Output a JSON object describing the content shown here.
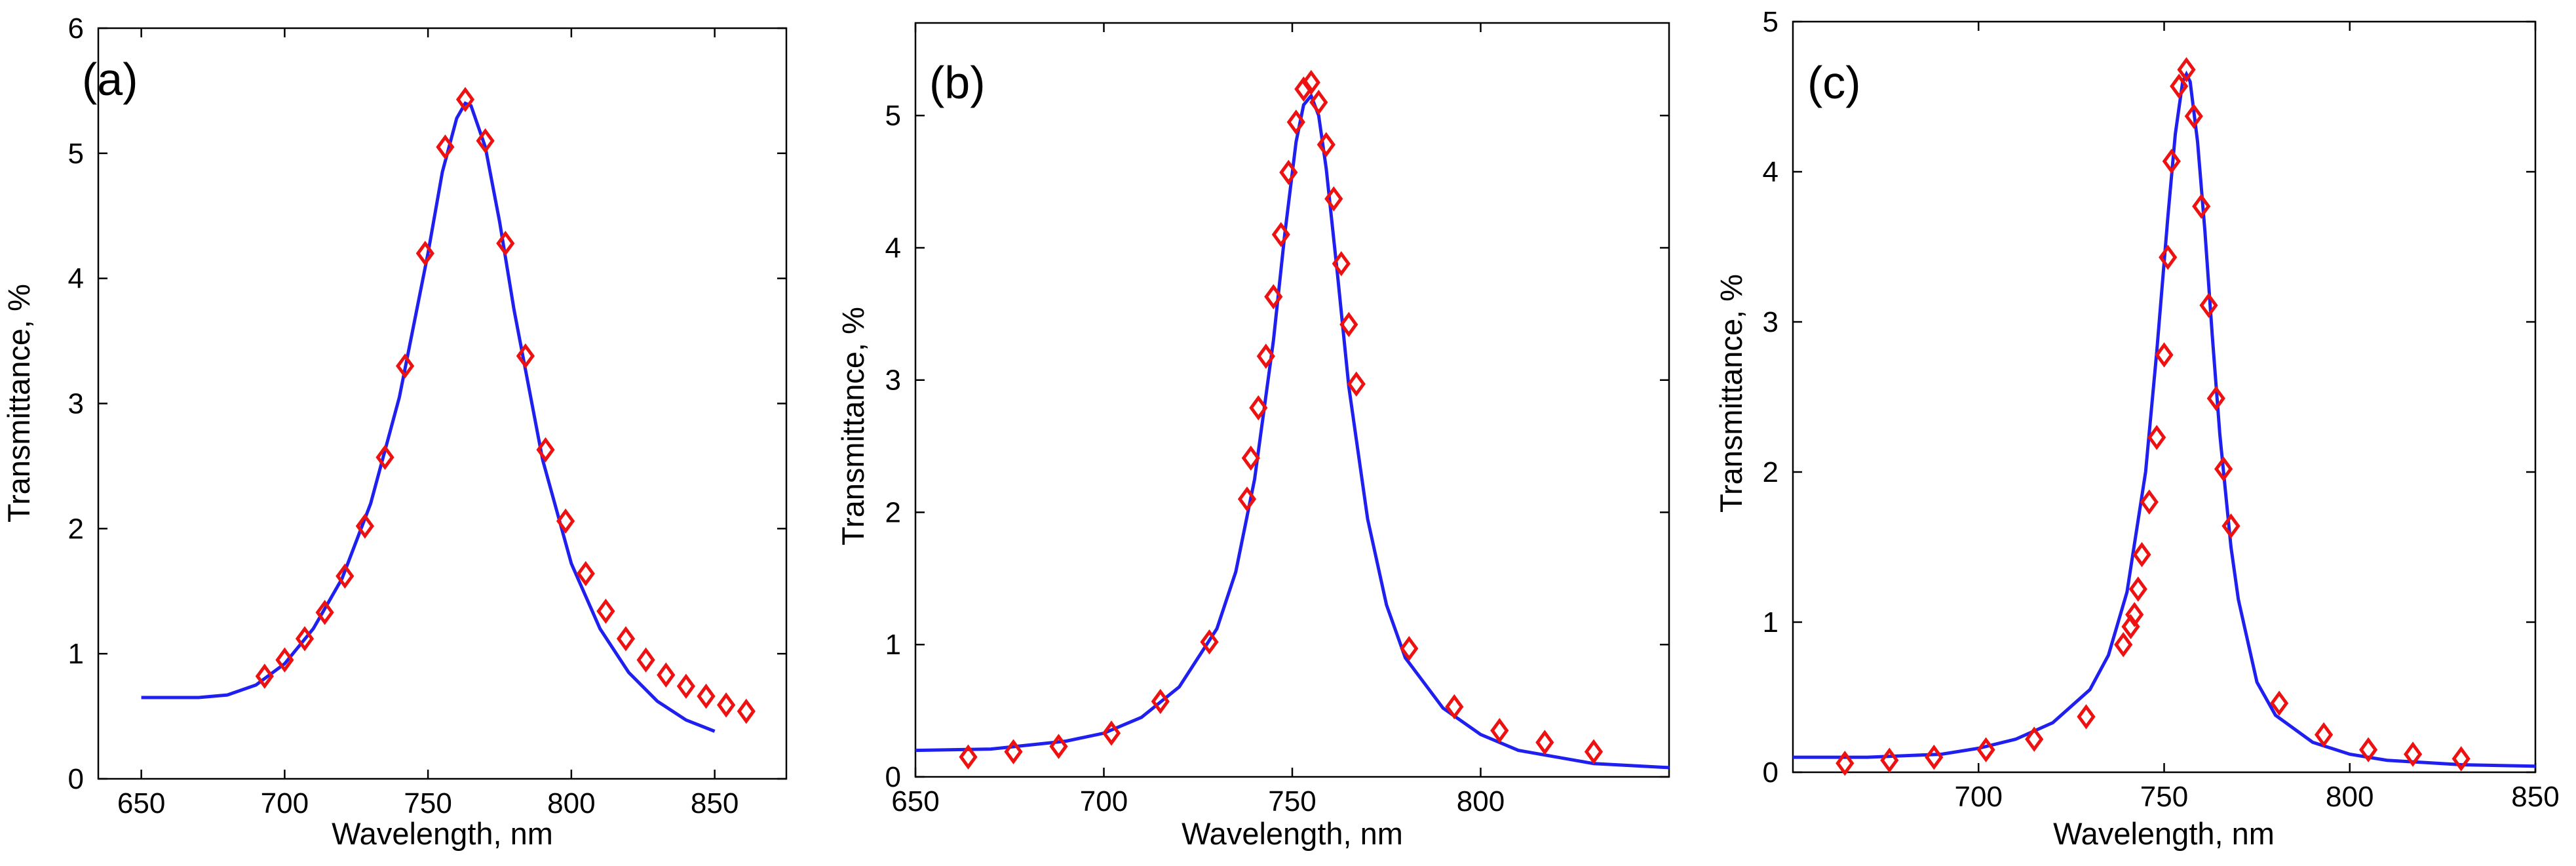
{
  "colors": {
    "fit": "#1f1ff0",
    "data": "#ee1111"
  },
  "chart_data": [
    {
      "type": "line",
      "panel": "(a)",
      "title": "",
      "xlabel": "Wavelength, nm",
      "ylabel": "Transmittance, %",
      "xlim": [
        635,
        875
      ],
      "ylim": [
        0,
        6
      ],
      "xticks": [
        650,
        700,
        750,
        800,
        850
      ],
      "yticks": [
        0,
        1,
        2,
        3,
        4,
        5,
        6
      ],
      "series": [
        {
          "name": "fit",
          "style": "line",
          "x": [
            650,
            660,
            670,
            680,
            690,
            700,
            710,
            720,
            730,
            740,
            750,
            755,
            760,
            763,
            765,
            770,
            775,
            780,
            790,
            800,
            810,
            820,
            830,
            840,
            850
          ],
          "y": [
            0.65,
            0.65,
            0.65,
            0.67,
            0.75,
            0.92,
            1.2,
            1.6,
            2.2,
            3.05,
            4.2,
            4.85,
            5.28,
            5.4,
            5.38,
            5.05,
            4.45,
            3.75,
            2.55,
            1.72,
            1.2,
            0.85,
            0.62,
            0.47,
            0.38
          ]
        },
        {
          "name": "measured",
          "style": "markers",
          "x": [
            693,
            700,
            707,
            714,
            721,
            728,
            735,
            742,
            749,
            756,
            763,
            770,
            777,
            784,
            791,
            798,
            805,
            812,
            819,
            826,
            833,
            840,
            847,
            854,
            861
          ],
          "y": [
            0.82,
            0.95,
            1.12,
            1.33,
            1.62,
            2.02,
            2.57,
            3.3,
            4.2,
            5.05,
            5.43,
            5.1,
            4.28,
            3.38,
            2.63,
            2.06,
            1.64,
            1.34,
            1.12,
            0.95,
            0.83,
            0.74,
            0.66,
            0.59,
            0.54
          ]
        }
      ]
    },
    {
      "type": "line",
      "panel": "(b)",
      "title": "",
      "xlabel": "Wavelength, nm",
      "ylabel": "Transmittance, %",
      "xlim": [
        650,
        850
      ],
      "ylim": [
        0,
        5.7
      ],
      "xticks": [
        650,
        700,
        750,
        800
      ],
      "yticks": [
        0,
        1,
        2,
        3,
        4,
        5
      ],
      "series": [
        {
          "name": "fit",
          "style": "line",
          "x": [
            650,
            670,
            690,
            700,
            710,
            720,
            730,
            735,
            740,
            745,
            748,
            751,
            753,
            755,
            757,
            759,
            762,
            765,
            770,
            775,
            780,
            790,
            800,
            810,
            830,
            850
          ],
          "y": [
            0.2,
            0.21,
            0.27,
            0.33,
            0.45,
            0.68,
            1.12,
            1.55,
            2.25,
            3.3,
            4.1,
            4.8,
            5.08,
            5.15,
            5.0,
            4.6,
            3.8,
            2.95,
            1.95,
            1.3,
            0.9,
            0.52,
            0.32,
            0.2,
            0.1,
            0.07
          ]
        },
        {
          "name": "measured",
          "style": "markers",
          "x": [
            664,
            676,
            688,
            702,
            715,
            728,
            738,
            739,
            741,
            743,
            745,
            747,
            749,
            751,
            753,
            755,
            757,
            759,
            761,
            763,
            765,
            767,
            781,
            793,
            805,
            817,
            830
          ],
          "y": [
            0.15,
            0.19,
            0.23,
            0.33,
            0.57,
            1.02,
            2.1,
            2.41,
            2.79,
            3.18,
            3.63,
            4.1,
            4.57,
            4.95,
            5.2,
            5.25,
            5.1,
            4.78,
            4.37,
            3.88,
            3.42,
            2.97,
            0.97,
            0.53,
            0.35,
            0.26,
            0.19
          ]
        }
      ]
    },
    {
      "type": "line",
      "panel": "(c)",
      "title": "",
      "xlabel": "Wavelength, nm",
      "ylabel": "Transmittance, %",
      "xlim": [
        650,
        850
      ],
      "ylim": [
        0,
        5
      ],
      "xticks": [
        700,
        750,
        800,
        850
      ],
      "yticks": [
        0,
        1,
        2,
        3,
        4,
        5
      ],
      "series": [
        {
          "name": "fit",
          "style": "line",
          "x": [
            650,
            670,
            690,
            700,
            710,
            720,
            730,
            735,
            740,
            745,
            748,
            751,
            753,
            755,
            756,
            757,
            759,
            761,
            763,
            765,
            768,
            770,
            775,
            780,
            790,
            800,
            810,
            830,
            850
          ],
          "y": [
            0.1,
            0.1,
            0.12,
            0.16,
            0.22,
            0.33,
            0.55,
            0.78,
            1.2,
            2.0,
            2.8,
            3.7,
            4.25,
            4.6,
            4.65,
            4.6,
            4.2,
            3.6,
            2.9,
            2.25,
            1.5,
            1.15,
            0.6,
            0.38,
            0.2,
            0.12,
            0.08,
            0.05,
            0.04
          ]
        },
        {
          "name": "measured",
          "style": "markers",
          "x": [
            664,
            676,
            688,
            702,
            715,
            729,
            739,
            741,
            742,
            743,
            744,
            746,
            748,
            750,
            751,
            752,
            754,
            756,
            758,
            760,
            762,
            764,
            766,
            768,
            781,
            793,
            805,
            817,
            830
          ],
          "y": [
            0.06,
            0.08,
            0.1,
            0.15,
            0.22,
            0.37,
            0.85,
            0.97,
            1.05,
            1.22,
            1.45,
            1.8,
            2.23,
            2.78,
            3.43,
            4.07,
            4.57,
            4.68,
            4.37,
            3.77,
            3.11,
            2.49,
            2.02,
            1.64,
            0.46,
            0.25,
            0.15,
            0.12,
            0.09
          ]
        }
      ]
    }
  ]
}
